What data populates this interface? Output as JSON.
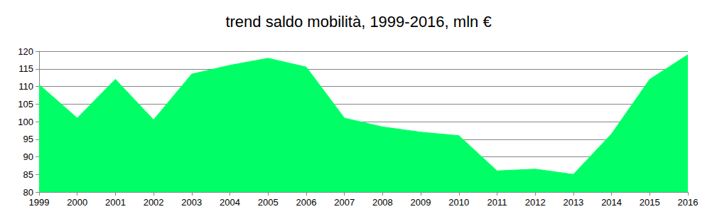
{
  "chart_data": {
    "type": "area",
    "title": "trend saldo mobilità, 1999-2016, mln €",
    "categories": [
      "1999",
      "2000",
      "2001",
      "2002",
      "2003",
      "2004",
      "2005",
      "2006",
      "2007",
      "2008",
      "2009",
      "2010",
      "2011",
      "2012",
      "2013",
      "2014",
      "2015",
      "2016"
    ],
    "values": [
      110.5,
      101,
      112,
      100.5,
      113.5,
      116,
      118,
      115.5,
      101,
      98.5,
      97,
      96,
      86,
      86.5,
      85,
      96.5,
      112,
      119
    ],
    "color": "#00ff66",
    "ylim": [
      80,
      120
    ],
    "yticks": [
      80,
      85,
      90,
      95,
      100,
      105,
      110,
      115,
      120
    ],
    "grid": true
  }
}
